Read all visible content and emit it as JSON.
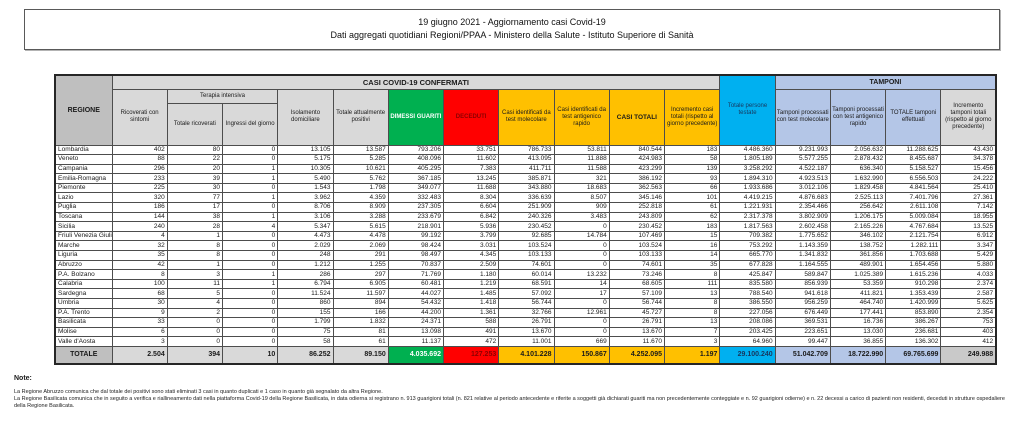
{
  "header": {
    "line1": "19 giugno 2021 - Aggiornamento casi Covid-19",
    "line2": "Dati aggregati quotidiani Regioni/PPAA - Ministero della Salute - Istituto Superiore di Sanità"
  },
  "table": {
    "headers": {
      "regione": "REGIONE",
      "confermati_group": "CASI COVID-19 CONFERMATI",
      "tamponi_group": "TAMPONI",
      "ricoverati": "Ricoverati con sintomi",
      "terapia_group": "Terapia intensiva",
      "terapia_totale": "Totale ricoverati",
      "terapia_ingressi": "Ingressi del giorno",
      "isolamento": "Isolamento domiciliare",
      "positivi": "Totale attualmente positivi",
      "guariti": "DIMESSI GUARITI",
      "deceduti": "DECEDUTI",
      "casi_molecolare": "Casi identificati da test molecolare",
      "casi_antigenico": "Casi identificati da test antigenico rapido",
      "casi_totali": "CASI TOTALI",
      "incremento_casi": "Incremento casi totali (rispetto al giorno precedente)",
      "persone_testate": "Totale persone testate",
      "tamponi_molecolare": "Tamponi processati con test molecolare",
      "tamponi_antigenico": "Tamponi processati con test antigenico rapido",
      "tamponi_totale": "TOTALE tamponi effettuati",
      "incremento_tamponi": "Incremento tamponi totali (rispetto al giorno precedente)"
    },
    "rows": [
      {
        "name": "Lombardia",
        "values": [
          "402",
          "80",
          "0",
          "13.105",
          "13.587",
          "793.206",
          "33.751",
          "786.733",
          "53.811",
          "840.544",
          "183",
          "4.486.360",
          "9.231.993",
          "2.056.632",
          "11.288.625",
          "43.430"
        ]
      },
      {
        "name": "Veneto",
        "values": [
          "88",
          "22",
          "0",
          "5.175",
          "5.285",
          "408.096",
          "11.602",
          "413.095",
          "11.888",
          "424.983",
          "58",
          "1.805.189",
          "5.577.255",
          "2.878.432",
          "8.455.687",
          "34.378"
        ]
      },
      {
        "name": "Campania",
        "values": [
          "296",
          "20",
          "1",
          "10.305",
          "10.621",
          "405.295",
          "7.383",
          "411.711",
          "11.588",
          "423.299",
          "139",
          "3.258.292",
          "4.522.187",
          "636.340",
          "5.158.527",
          "15.456"
        ]
      },
      {
        "name": "Emilia-Romagna",
        "values": [
          "233",
          "39",
          "1",
          "5.490",
          "5.762",
          "367.185",
          "13.245",
          "385.871",
          "321",
          "386.192",
          "93",
          "1.894.310",
          "4.923.513",
          "1.632.990",
          "6.556.503",
          "24.222"
        ]
      },
      {
        "name": "Piemonte",
        "values": [
          "225",
          "30",
          "0",
          "1.543",
          "1.798",
          "349.077",
          "11.688",
          "343.880",
          "18.683",
          "362.563",
          "66",
          "1.933.686",
          "3.012.106",
          "1.829.458",
          "4.841.564",
          "25.410"
        ]
      },
      {
        "name": "Lazio",
        "values": [
          "320",
          "77",
          "1",
          "3.962",
          "4.359",
          "332.483",
          "8.304",
          "336.639",
          "8.507",
          "345.146",
          "101",
          "4.419.215",
          "4.876.683",
          "2.525.113",
          "7.401.796",
          "27.361"
        ]
      },
      {
        "name": "Puglia",
        "values": [
          "186",
          "17",
          "0",
          "8.706",
          "8.909",
          "237.305",
          "6.604",
          "251.909",
          "909",
          "252.818",
          "61",
          "1.221.931",
          "2.354.466",
          "256.642",
          "2.611.108",
          "7.142"
        ]
      },
      {
        "name": "Toscana",
        "values": [
          "144",
          "38",
          "1",
          "3.106",
          "3.288",
          "233.679",
          "6.842",
          "240.326",
          "3.483",
          "243.809",
          "62",
          "2.317.378",
          "3.802.909",
          "1.206.175",
          "5.009.084",
          "18.955"
        ]
      },
      {
        "name": "Sicilia",
        "values": [
          "240",
          "28",
          "4",
          "5.347",
          "5.615",
          "218.901",
          "5.936",
          "230.452",
          "0",
          "230.452",
          "183",
          "1.817.563",
          "2.602.458",
          "2.165.226",
          "4.767.684",
          "13.525"
        ]
      },
      {
        "name": "Friuli Venezia Giulia",
        "values": [
          "4",
          "1",
          "0",
          "4.473",
          "4.478",
          "99.192",
          "3.799",
          "92.685",
          "14.784",
          "107.469",
          "15",
          "709.382",
          "1.775.652",
          "346.102",
          "2.121.754",
          "6.912"
        ]
      },
      {
        "name": "Marche",
        "values": [
          "32",
          "8",
          "0",
          "2.029",
          "2.069",
          "98.424",
          "3.031",
          "103.524",
          "0",
          "103.524",
          "16",
          "753.292",
          "1.143.359",
          "138.752",
          "1.282.111",
          "3.347"
        ]
      },
      {
        "name": "Liguria",
        "values": [
          "35",
          "8",
          "0",
          "248",
          "291",
          "98.497",
          "4.345",
          "103.133",
          "0",
          "103.133",
          "14",
          "665.770",
          "1.341.832",
          "361.856",
          "1.703.688",
          "5.429"
        ]
      },
      {
        "name": "Abruzzo",
        "values": [
          "42",
          "1",
          "0",
          "1.212",
          "1.255",
          "70.837",
          "2.509",
          "74.601",
          "0",
          "74.601",
          "35",
          "677.828",
          "1.164.555",
          "489.901",
          "1.654.456",
          "5.880"
        ]
      },
      {
        "name": "P.A. Bolzano",
        "values": [
          "8",
          "3",
          "1",
          "286",
          "297",
          "71.769",
          "1.180",
          "60.014",
          "13.232",
          "73.246",
          "8",
          "425.847",
          "589.847",
          "1.025.389",
          "1.615.236",
          "4.033"
        ]
      },
      {
        "name": "Calabria",
        "values": [
          "100",
          "11",
          "1",
          "6.794",
          "6.905",
          "60.481",
          "1.219",
          "68.591",
          "14",
          "68.605",
          "111",
          "835.580",
          "856.939",
          "53.359",
          "910.298",
          "2.374"
        ]
      },
      {
        "name": "Sardegna",
        "values": [
          "68",
          "5",
          "0",
          "11.524",
          "11.597",
          "44.027",
          "1.485",
          "57.092",
          "17",
          "57.109",
          "13",
          "788.540",
          "941.618",
          "411.821",
          "1.353.439",
          "2.587"
        ]
      },
      {
        "name": "Umbria",
        "values": [
          "30",
          "4",
          "0",
          "860",
          "894",
          "54.432",
          "1.418",
          "56.744",
          "0",
          "56.744",
          "8",
          "386.550",
          "956.259",
          "464.740",
          "1.420.999",
          "5.625"
        ]
      },
      {
        "name": "P.A. Trento",
        "values": [
          "9",
          "2",
          "0",
          "155",
          "166",
          "44.200",
          "1.361",
          "32.766",
          "12.961",
          "45.727",
          "8",
          "227.056",
          "676.449",
          "177.441",
          "853.890",
          "2.354"
        ]
      },
      {
        "name": "Basilicata",
        "values": [
          "33",
          "0",
          "0",
          "1.799",
          "1.832",
          "24.371",
          "588",
          "26.791",
          "0",
          "26.791",
          "13",
          "208.086",
          "369.531",
          "16.736",
          "386.267",
          "753"
        ]
      },
      {
        "name": "Molise",
        "values": [
          "6",
          "0",
          "0",
          "75",
          "81",
          "13.098",
          "491",
          "13.670",
          "0",
          "13.670",
          "7",
          "203.425",
          "223.651",
          "13.030",
          "236.681",
          "403"
        ]
      },
      {
        "name": "Valle d'Aosta",
        "values": [
          "3",
          "0",
          "0",
          "58",
          "61",
          "11.137",
          "472",
          "11.001",
          "669",
          "11.670",
          "3",
          "64.960",
          "99.447",
          "36.855",
          "136.302",
          "412"
        ]
      }
    ],
    "total_row": {
      "name": "TOTALE",
      "values": [
        "2.504",
        "394",
        "10",
        "86.252",
        "89.150",
        "4.035.692",
        "127.253",
        "4.101.228",
        "150.867",
        "4.252.095",
        "1.197",
        "29.100.240",
        "51.042.709",
        "18.722.990",
        "69.765.699",
        "249.988"
      ]
    }
  },
  "notes": {
    "title": "Note:",
    "line1": "La Regione Abruzzo comunica che dal totale dei positivi sono stati eliminati 3 casi in quanto duplicati e 1 caso in quanto già segnalato da altra Regione.",
    "line2": "La Regione Basilicata comunica che in seguito a verifica e riallineamento dati nella piattaforma Covid-19 della Regione Basilicata, in data odierna si registrano n. 913 guarigioni totali (n. 821 relative al periodo antecedente e riferite a soggetti già dichiarati guariti  ma non precedentemente conteggiate e n. 92 guarigioni odierne) e n. 22 decessi a carico di pazienti non residenti, deceduti in strutture ospedaliere della Regione Basilicata."
  },
  "colors": {
    "guariti_green": "#00B050",
    "deceduti_red": "#FF0000",
    "casi_gold": "#FFC000",
    "testate_cyan": "#00B0F0",
    "tamponi_blue": "#B4C6E7",
    "header_gray": "#D9D9D9",
    "region_gray": "#BFBFBF"
  }
}
